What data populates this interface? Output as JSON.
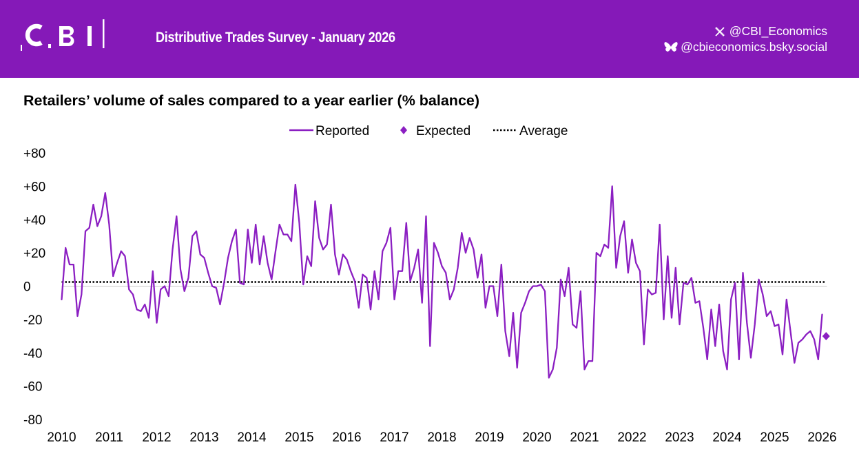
{
  "brand": {
    "logo_text": "CBI",
    "survey_title": "Distributive Trades Survey - January 2026",
    "social": [
      {
        "icon": "x-icon",
        "handle": "@CBI_Economics"
      },
      {
        "icon": "bluesky-butterfly-icon",
        "handle": "@cbieconomics.bsky.social"
      }
    ],
    "colors": {
      "header": "#8519b8",
      "series": "#8b1fc2",
      "text": "#000000"
    }
  },
  "chart_data": {
    "type": "line",
    "title": "Retailers’ volume of sales compared to a year earlier (% balance)",
    "ylim": [
      -80,
      80
    ],
    "yticks": [
      80,
      60,
      40,
      20,
      0,
      -20,
      -40,
      -60,
      -80
    ],
    "ytick_labels": [
      "+80",
      "+60",
      "+40",
      "+20",
      "0",
      "-20",
      "-40",
      "-60",
      "-80"
    ],
    "xticks": [
      "2010",
      "2011",
      "2012",
      "2013",
      "2014",
      "2015",
      "2016",
      "2017",
      "2018",
      "2019",
      "2020",
      "2021",
      "2022",
      "2023",
      "2024",
      "2025",
      "2026"
    ],
    "legend": {
      "placement": "top-center",
      "entries": [
        "Reported",
        "Expected",
        "Average"
      ]
    },
    "grid": false,
    "series": [
      {
        "name": "Reported",
        "style": "line",
        "start": "2010-01",
        "frequency": "monthly",
        "values": [
          -8,
          23,
          13,
          13,
          -18,
          -5,
          33,
          35,
          49,
          36,
          42,
          56,
          37,
          6,
          14,
          21,
          18,
          -2,
          -5,
          -14,
          -15,
          -11,
          -19,
          9,
          -22,
          -2,
          0,
          -6,
          22,
          42,
          10,
          -3,
          5,
          30,
          33,
          19,
          17,
          8,
          0,
          -1,
          -11,
          2,
          17,
          27,
          34,
          2,
          1,
          34,
          14,
          37,
          13,
          30,
          14,
          4,
          21,
          37,
          31,
          31,
          27,
          61,
          38,
          1,
          18,
          12,
          51,
          29,
          22,
          25,
          49,
          19,
          7,
          19,
          16,
          9,
          3,
          -13,
          7,
          5,
          -14,
          9,
          -8,
          21,
          26,
          35,
          -8,
          9,
          9,
          38,
          3,
          11,
          22,
          -10,
          42,
          -36,
          26,
          20,
          12,
          8,
          -8,
          -2,
          11,
          32,
          20,
          29,
          22,
          5,
          19,
          -13,
          0,
          0,
          -18,
          13,
          -27,
          -42,
          -16,
          -49,
          -16,
          -10,
          -3,
          0,
          0,
          1,
          -3,
          -55,
          -50,
          -37,
          4,
          -6,
          11,
          -23,
          -25,
          -3,
          -50,
          -45,
          -45,
          20,
          18,
          25,
          23,
          60,
          11,
          30,
          39,
          8,
          28,
          14,
          9,
          -35,
          -2,
          -5,
          -4,
          37,
          -20,
          18,
          -19,
          11,
          -23,
          2,
          1,
          5,
          -10,
          -9,
          -25,
          -44,
          -14,
          -36,
          -11,
          -39,
          -50,
          -8,
          2,
          -44,
          8,
          -22,
          -43,
          -23,
          4,
          -5,
          -18,
          -15,
          -24,
          -23,
          -41,
          -8,
          -27,
          -46,
          -34,
          -32,
          -29,
          -27,
          -32,
          -44,
          -17
        ]
      },
      {
        "name": "Expected",
        "style": "diamond",
        "x": [
          "2026-02"
        ],
        "values": [
          -30
        ]
      },
      {
        "name": "Average",
        "style": "dotted",
        "values": [
          2.5
        ]
      }
    ]
  }
}
